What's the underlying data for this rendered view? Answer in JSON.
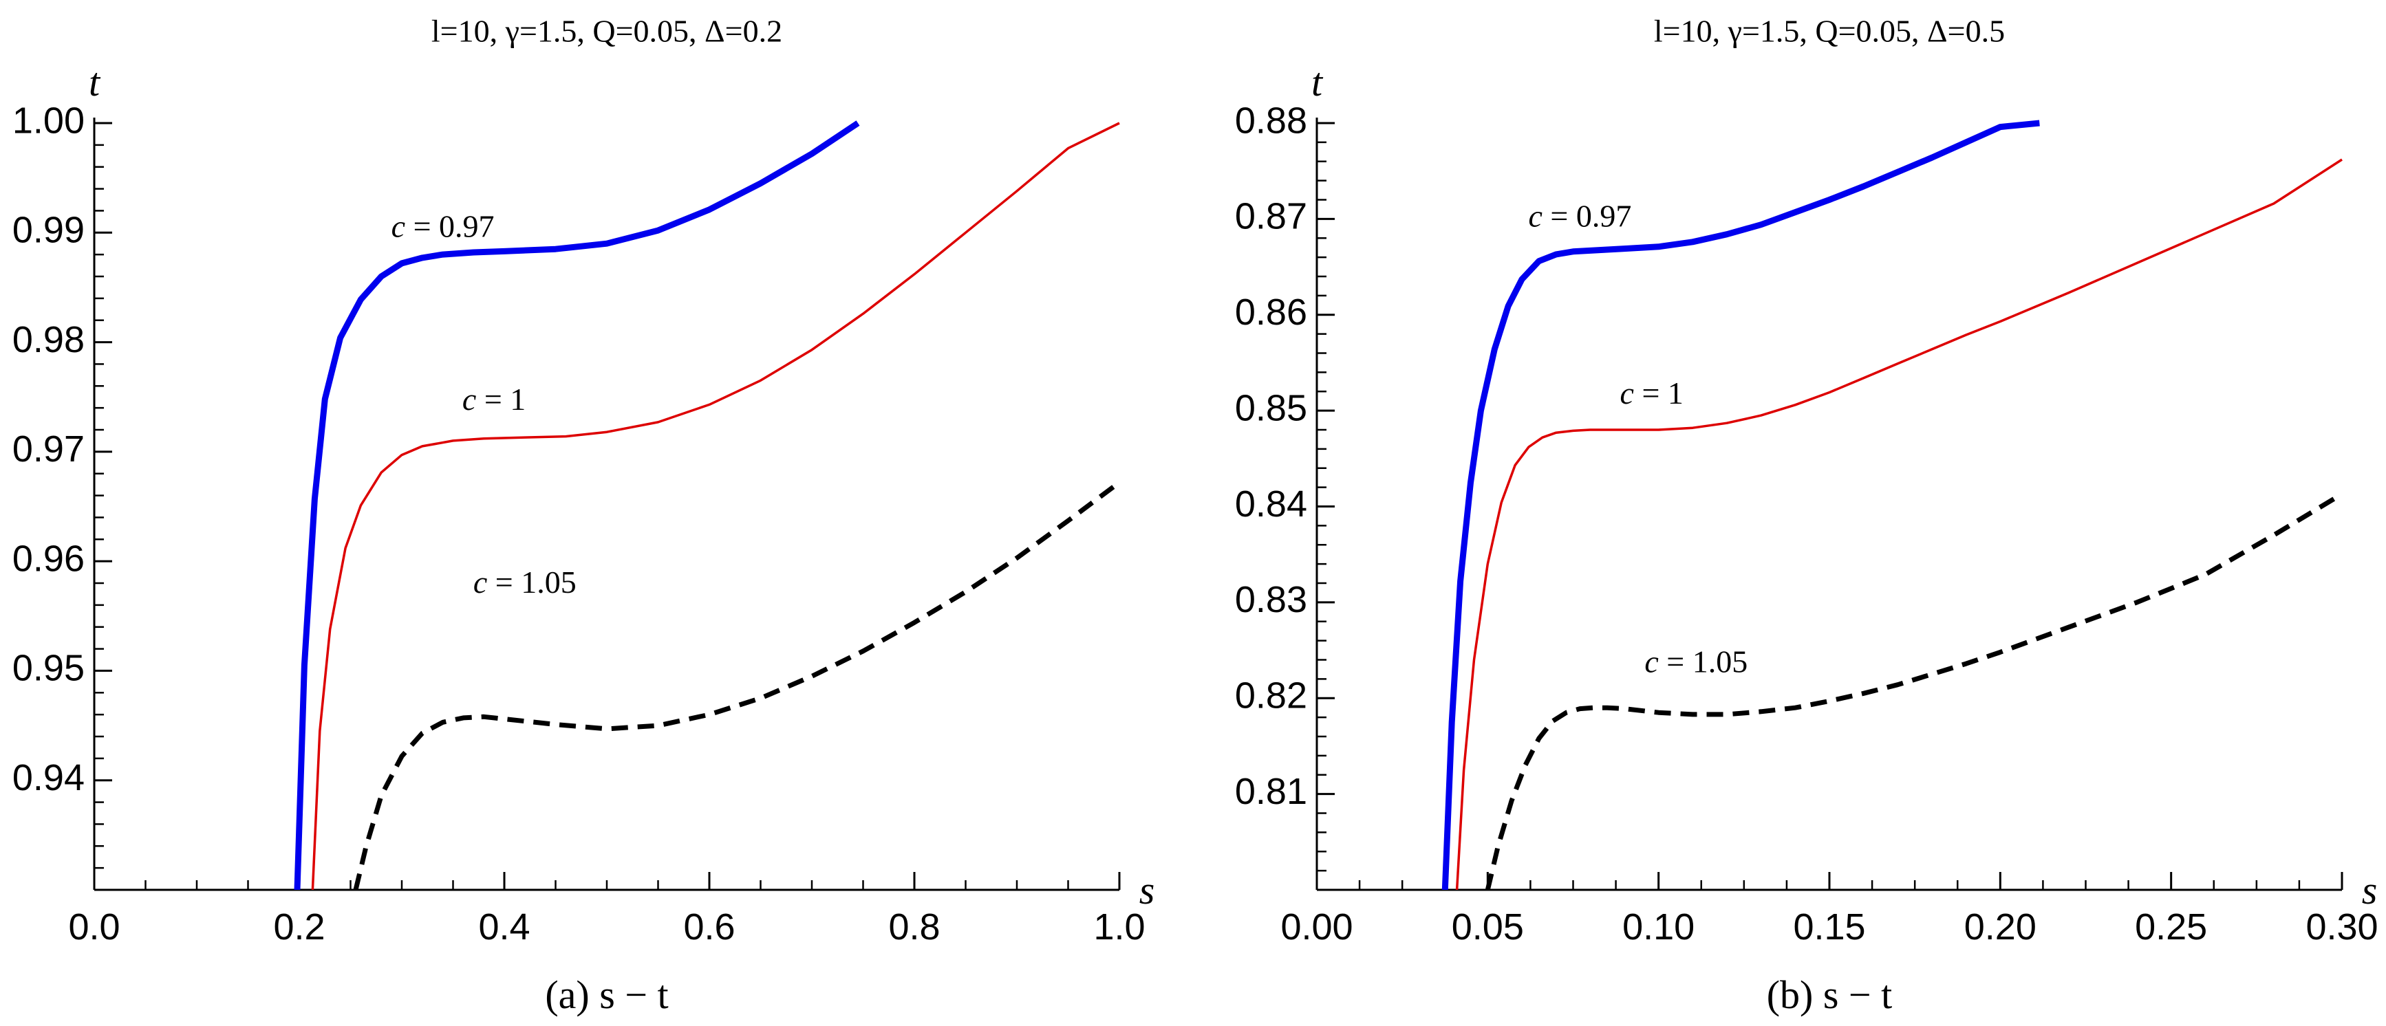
{
  "chart_data": [
    {
      "type": "line",
      "title": "l=10, γ=1.5, Q=0.05, Δ=0.2",
      "caption": "(a) s − t",
      "xlabel": "s",
      "ylabel": "t",
      "xlim": [
        0.0,
        1.0
      ],
      "ylim": [
        0.93,
        1.0
      ],
      "xticks": [
        "0.0",
        "0.2",
        "0.4",
        "0.6",
        "0.8",
        "1.0"
      ],
      "yticks": [
        "0.94",
        "0.95",
        "0.96",
        "0.97",
        "0.98",
        "0.99",
        "1.00"
      ],
      "grid": false,
      "series": [
        {
          "name": "c = 0.97",
          "color": "#0000ee",
          "style": "solid-thick",
          "x": [
            0.198,
            0.205,
            0.215,
            0.225,
            0.24,
            0.26,
            0.28,
            0.3,
            0.32,
            0.34,
            0.37,
            0.4,
            0.45,
            0.5,
            0.55,
            0.6,
            0.65,
            0.7,
            0.745
          ],
          "y": [
            0.93,
            0.9505,
            0.9657,
            0.9748,
            0.9804,
            0.9839,
            0.986,
            0.9872,
            0.9877,
            0.988,
            0.9882,
            0.9883,
            0.9885,
            0.989,
            0.9902,
            0.9921,
            0.9945,
            0.9972,
            1.0
          ]
        },
        {
          "name": "c = 1",
          "color": "#dd0000",
          "style": "solid-thin",
          "x": [
            0.213,
            0.22,
            0.23,
            0.245,
            0.26,
            0.28,
            0.3,
            0.32,
            0.35,
            0.38,
            0.42,
            0.46,
            0.5,
            0.55,
            0.6,
            0.65,
            0.7,
            0.75,
            0.8,
            0.85,
            0.9,
            0.95,
            1.0
          ],
          "y": [
            0.93,
            0.9445,
            0.9538,
            0.9612,
            0.9651,
            0.9681,
            0.9697,
            0.9705,
            0.971,
            0.9712,
            0.9713,
            0.9714,
            0.9718,
            0.9727,
            0.9743,
            0.9765,
            0.9793,
            0.9826,
            0.9862,
            0.99,
            0.9938,
            0.9977,
            1.0
          ]
        },
        {
          "name": "c = 1.05",
          "color": "#000000",
          "style": "dashed",
          "x": [
            0.255,
            0.265,
            0.28,
            0.3,
            0.32,
            0.34,
            0.36,
            0.38,
            0.4,
            0.42,
            0.45,
            0.5,
            0.55,
            0.6,
            0.65,
            0.7,
            0.75,
            0.8,
            0.85,
            0.9,
            0.95,
            1.0
          ],
          "y": [
            0.93,
            0.9339,
            0.9386,
            0.9422,
            0.9443,
            0.9453,
            0.9457,
            0.9458,
            0.9456,
            0.9454,
            0.9451,
            0.9447,
            0.945,
            0.946,
            0.9475,
            0.9495,
            0.9518,
            0.9544,
            0.9572,
            0.9603,
            0.9637,
            0.9672
          ]
        }
      ],
      "annotations": [
        {
          "text": "c = 0.97",
          "x": 0.34,
          "y": 0.9903
        },
        {
          "text": "c = 1",
          "x": 0.39,
          "y": 0.9745
        },
        {
          "text": "c = 1.05",
          "x": 0.42,
          "y": 0.9578
        }
      ]
    },
    {
      "type": "line",
      "title": "l=10, γ=1.5, Q=0.05, Δ=0.5",
      "caption": "(b) s − t",
      "xlabel": "s",
      "ylabel": "t",
      "xlim": [
        0.0,
        0.3
      ],
      "ylim": [
        0.8,
        0.88
      ],
      "xticks": [
        "0.00",
        "0.05",
        "0.10",
        "0.15",
        "0.20",
        "0.25",
        "0.30"
      ],
      "yticks": [
        "0.81",
        "0.82",
        "0.83",
        "0.84",
        "0.85",
        "0.86",
        "0.87",
        "0.88"
      ],
      "grid": false,
      "series": [
        {
          "name": "c = 0.97",
          "color": "#0000ee",
          "style": "solid-thick",
          "x": [
            0.0375,
            0.0395,
            0.042,
            0.045,
            0.048,
            0.052,
            0.056,
            0.06,
            0.065,
            0.07,
            0.075,
            0.08,
            0.09,
            0.1,
            0.11,
            0.12,
            0.13,
            0.14,
            0.15,
            0.16,
            0.17,
            0.18,
            0.19,
            0.2,
            0.2115
          ],
          "y": [
            0.8,
            0.8175,
            0.8322,
            0.8425,
            0.85,
            0.8564,
            0.8609,
            0.8637,
            0.8656,
            0.8663,
            0.8666,
            0.8667,
            0.8669,
            0.8671,
            0.8676,
            0.8684,
            0.8694,
            0.8707,
            0.872,
            0.8734,
            0.8749,
            0.8764,
            0.878,
            0.8796,
            0.88
          ]
        },
        {
          "name": "c = 1",
          "color": "#dd0000",
          "style": "solid-thin",
          "x": [
            0.041,
            0.043,
            0.046,
            0.05,
            0.054,
            0.058,
            0.062,
            0.066,
            0.07,
            0.075,
            0.08,
            0.09,
            0.1,
            0.11,
            0.12,
            0.13,
            0.14,
            0.15,
            0.16,
            0.17,
            0.18,
            0.19,
            0.2,
            0.21,
            0.22,
            0.24,
            0.26,
            0.28,
            0.3
          ],
          "y": [
            0.8,
            0.8125,
            0.824,
            0.834,
            0.8404,
            0.8443,
            0.8462,
            0.8472,
            0.8477,
            0.8479,
            0.848,
            0.848,
            0.848,
            0.8482,
            0.8487,
            0.8495,
            0.8506,
            0.8519,
            0.8534,
            0.8549,
            0.8564,
            0.8579,
            0.8593,
            0.8608,
            0.8623,
            0.8654,
            0.8685,
            0.8716,
            0.8762
          ]
        },
        {
          "name": "c = 1.05",
          "color": "#000000",
          "style": "dashed",
          "x": [
            0.05,
            0.053,
            0.057,
            0.061,
            0.065,
            0.069,
            0.073,
            0.077,
            0.081,
            0.085,
            0.09,
            0.1,
            0.11,
            0.12,
            0.13,
            0.14,
            0.15,
            0.16,
            0.17,
            0.18,
            0.19,
            0.2,
            0.21,
            0.22,
            0.24,
            0.26,
            0.28,
            0.3
          ],
          "y": [
            0.8,
            0.8045,
            0.8093,
            0.813,
            0.8158,
            0.8176,
            0.8185,
            0.8189,
            0.819,
            0.819,
            0.8189,
            0.8185,
            0.8183,
            0.8183,
            0.8186,
            0.819,
            0.8197,
            0.8205,
            0.8214,
            0.8225,
            0.8236,
            0.8248,
            0.8261,
            0.8274,
            0.83,
            0.8329,
            0.837,
            0.8413
          ]
        }
      ],
      "annotations": [
        {
          "text": "c = 0.97",
          "x": 0.077,
          "y": 0.87
        },
        {
          "text": "c = 1",
          "x": 0.098,
          "y": 0.8515
        },
        {
          "text": "c = 1.05",
          "x": 0.111,
          "y": 0.8235
        }
      ]
    }
  ]
}
